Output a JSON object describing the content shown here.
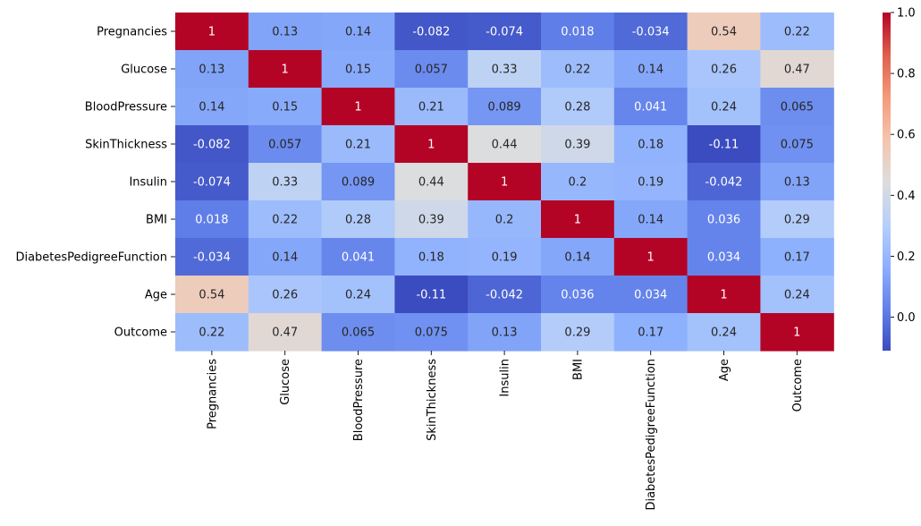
{
  "chart_data": {
    "type": "heatmap",
    "title": "",
    "xlabel": "",
    "ylabel": "",
    "rows": [
      "Pregnancies",
      "Glucose",
      "BloodPressure",
      "SkinThickness",
      "Insulin",
      "BMI",
      "DiabetesPedigreeFunction",
      "Age",
      "Outcome"
    ],
    "columns": [
      "Pregnancies",
      "Glucose",
      "BloodPressure",
      "SkinThickness",
      "Insulin",
      "BMI",
      "DiabetesPedigreeFunction",
      "Age",
      "Outcome"
    ],
    "values": [
      [
        1,
        0.13,
        0.14,
        -0.082,
        -0.074,
        0.018,
        -0.034,
        0.54,
        0.22
      ],
      [
        0.13,
        1,
        0.15,
        0.057,
        0.33,
        0.22,
        0.14,
        0.26,
        0.47
      ],
      [
        0.14,
        0.15,
        1,
        0.21,
        0.089,
        0.28,
        0.041,
        0.24,
        0.065
      ],
      [
        -0.082,
        0.057,
        0.21,
        1,
        0.44,
        0.39,
        0.18,
        -0.11,
        0.075
      ],
      [
        -0.074,
        0.33,
        0.089,
        0.44,
        1,
        0.2,
        0.19,
        -0.042,
        0.13
      ],
      [
        0.018,
        0.22,
        0.28,
        0.39,
        0.2,
        1,
        0.14,
        0.036,
        0.29
      ],
      [
        -0.034,
        0.14,
        0.041,
        0.18,
        0.19,
        0.14,
        1,
        0.034,
        0.17
      ],
      [
        0.54,
        0.26,
        0.24,
        -0.11,
        -0.042,
        0.036,
        0.034,
        1,
        0.24
      ],
      [
        0.22,
        0.47,
        0.065,
        0.075,
        0.13,
        0.29,
        0.17,
        0.24,
        1
      ]
    ],
    "labels": [
      [
        "1",
        "0.13",
        "0.14",
        "-0.082",
        "-0.074",
        "0.018",
        "-0.034",
        "0.54",
        "0.22"
      ],
      [
        "0.13",
        "1",
        "0.15",
        "0.057",
        "0.33",
        "0.22",
        "0.14",
        "0.26",
        "0.47"
      ],
      [
        "0.14",
        "0.15",
        "1",
        "0.21",
        "0.089",
        "0.28",
        "0.041",
        "0.24",
        "0.065"
      ],
      [
        "-0.082",
        "0.057",
        "0.21",
        "1",
        "0.44",
        "0.39",
        "0.18",
        "-0.11",
        "0.075"
      ],
      [
        "-0.074",
        "0.33",
        "0.089",
        "0.44",
        "1",
        "0.2",
        "0.19",
        "-0.042",
        "0.13"
      ],
      [
        "0.018",
        "0.22",
        "0.28",
        "0.39",
        "0.2",
        "1",
        "0.14",
        "0.036",
        "0.29"
      ],
      [
        "-0.034",
        "0.14",
        "0.041",
        "0.18",
        "0.19",
        "0.14",
        "1",
        "0.034",
        "0.17"
      ],
      [
        "0.54",
        "0.26",
        "0.24",
        "-0.11",
        "-0.042",
        "0.036",
        "0.034",
        "1",
        "0.24"
      ],
      [
        "0.22",
        "0.47",
        "0.065",
        "0.075",
        "0.13",
        "0.29",
        "0.17",
        "0.24",
        "1"
      ]
    ],
    "colormap": "coolwarm",
    "colorbar": {
      "range": [
        -0.11,
        1.0
      ],
      "ticks": [
        0.0,
        0.2,
        0.4,
        0.6,
        0.8,
        1.0
      ],
      "tick_labels": [
        "0.0",
        "0.2",
        "0.4",
        "0.6",
        "0.8",
        "1.0"
      ],
      "position": "right"
    },
    "grid": false
  }
}
